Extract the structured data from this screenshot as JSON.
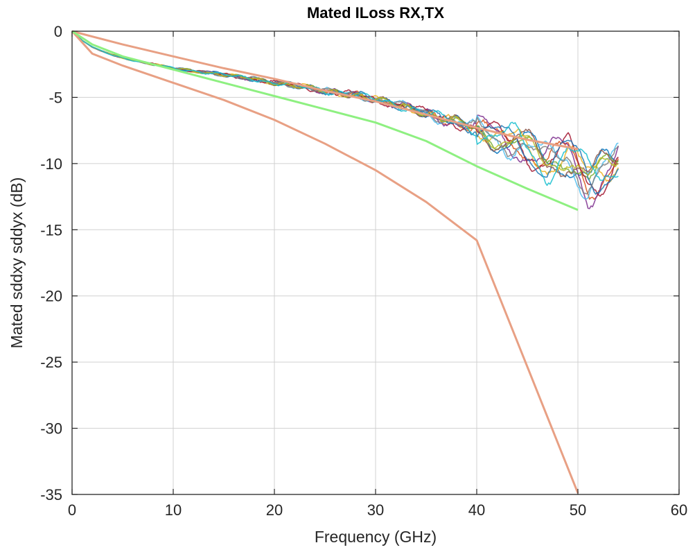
{
  "chart_data": {
    "type": "line",
    "title": "Mated ILoss RX,TX",
    "xlabel": "Frequency (GHz)",
    "ylabel": "Mated sddxy sddyx (dB)",
    "xlim": [
      0,
      60
    ],
    "ylim": [
      -35,
      0
    ],
    "xticks": [
      0,
      10,
      20,
      30,
      40,
      50,
      60
    ],
    "xtick_labels": [
      "0",
      "10",
      "20",
      "30",
      "40",
      "50",
      "60"
    ],
    "yticks": [
      0,
      -5,
      -10,
      -15,
      -20,
      -25,
      -30,
      -35
    ],
    "ytick_labels": [
      "0",
      "-5",
      "-10",
      "-15",
      "-20",
      "-25",
      "-30",
      "-35"
    ],
    "grid": true,
    "legend": "none",
    "limit_lines": [
      {
        "color": "#e8a084",
        "x": [
          0,
          5,
          10,
          15,
          20,
          25,
          30,
          35,
          40,
          45,
          50
        ],
        "y": [
          0,
          -1.0,
          -1.9,
          -2.8,
          -3.6,
          -4.5,
          -5.3,
          -6.3,
          -7.3,
          -8.2,
          -8.9
        ]
      },
      {
        "color": "#e8a084",
        "x": [
          0,
          2,
          5,
          10,
          15,
          20,
          25,
          30,
          35,
          40,
          50
        ],
        "y": [
          0,
          -1.7,
          -2.6,
          -3.9,
          -5.2,
          -6.7,
          -8.5,
          -10.5,
          -12.9,
          -15.8,
          -34.9
        ]
      },
      {
        "color": "#8ef081",
        "x": [
          0,
          2,
          5,
          10,
          15,
          20,
          25,
          30,
          35,
          40,
          45,
          50
        ],
        "y": [
          0,
          -1.0,
          -1.9,
          -2.9,
          -3.9,
          -4.9,
          -5.9,
          -6.9,
          -8.3,
          -10.2,
          -11.9,
          -13.5
        ]
      }
    ],
    "measured_series": {
      "count": 12,
      "colors": [
        "#0072bd",
        "#d95319",
        "#edb120",
        "#7e2f8e",
        "#77ac30",
        "#4dbeee",
        "#a2142f",
        "#1f77b4",
        "#8c564b",
        "#7f7f7f",
        "#bcbd22",
        "#17becf"
      ],
      "x": [
        0,
        1,
        2,
        4,
        6,
        8,
        10,
        12,
        15,
        18,
        20,
        22,
        25,
        28,
        30,
        32,
        34,
        36,
        38,
        40,
        42,
        43,
        44,
        45,
        46,
        47,
        48,
        49,
        50,
        51,
        52,
        53,
        54
      ],
      "base_y": [
        0,
        -0.7,
        -1.2,
        -1.8,
        -2.2,
        -2.5,
        -2.8,
        -3.0,
        -3.3,
        -3.6,
        -3.9,
        -4.1,
        -4.5,
        -4.8,
        -5.2,
        -5.5,
        -5.9,
        -6.5,
        -6.9,
        -7.3,
        -8.1,
        -8.6,
        -8.2,
        -8.8,
        -9.3,
        -9.9,
        -9.7,
        -9.3,
        -10.5,
        -11.3,
        -10.9,
        -10.2,
        -9.5
      ],
      "variant_amplitude": [
        0,
        0.03,
        0.05,
        0.08,
        0.1,
        0.12,
        0.15,
        0.18,
        0.22,
        0.26,
        0.3,
        0.35,
        0.4,
        0.45,
        0.5,
        0.6,
        0.7,
        0.9,
        1.0,
        1.1,
        1.2,
        1.3,
        1.4,
        1.5,
        1.5,
        1.6,
        1.7,
        1.7,
        1.8,
        2.0,
        2.0,
        1.6,
        1.3
      ]
    }
  }
}
